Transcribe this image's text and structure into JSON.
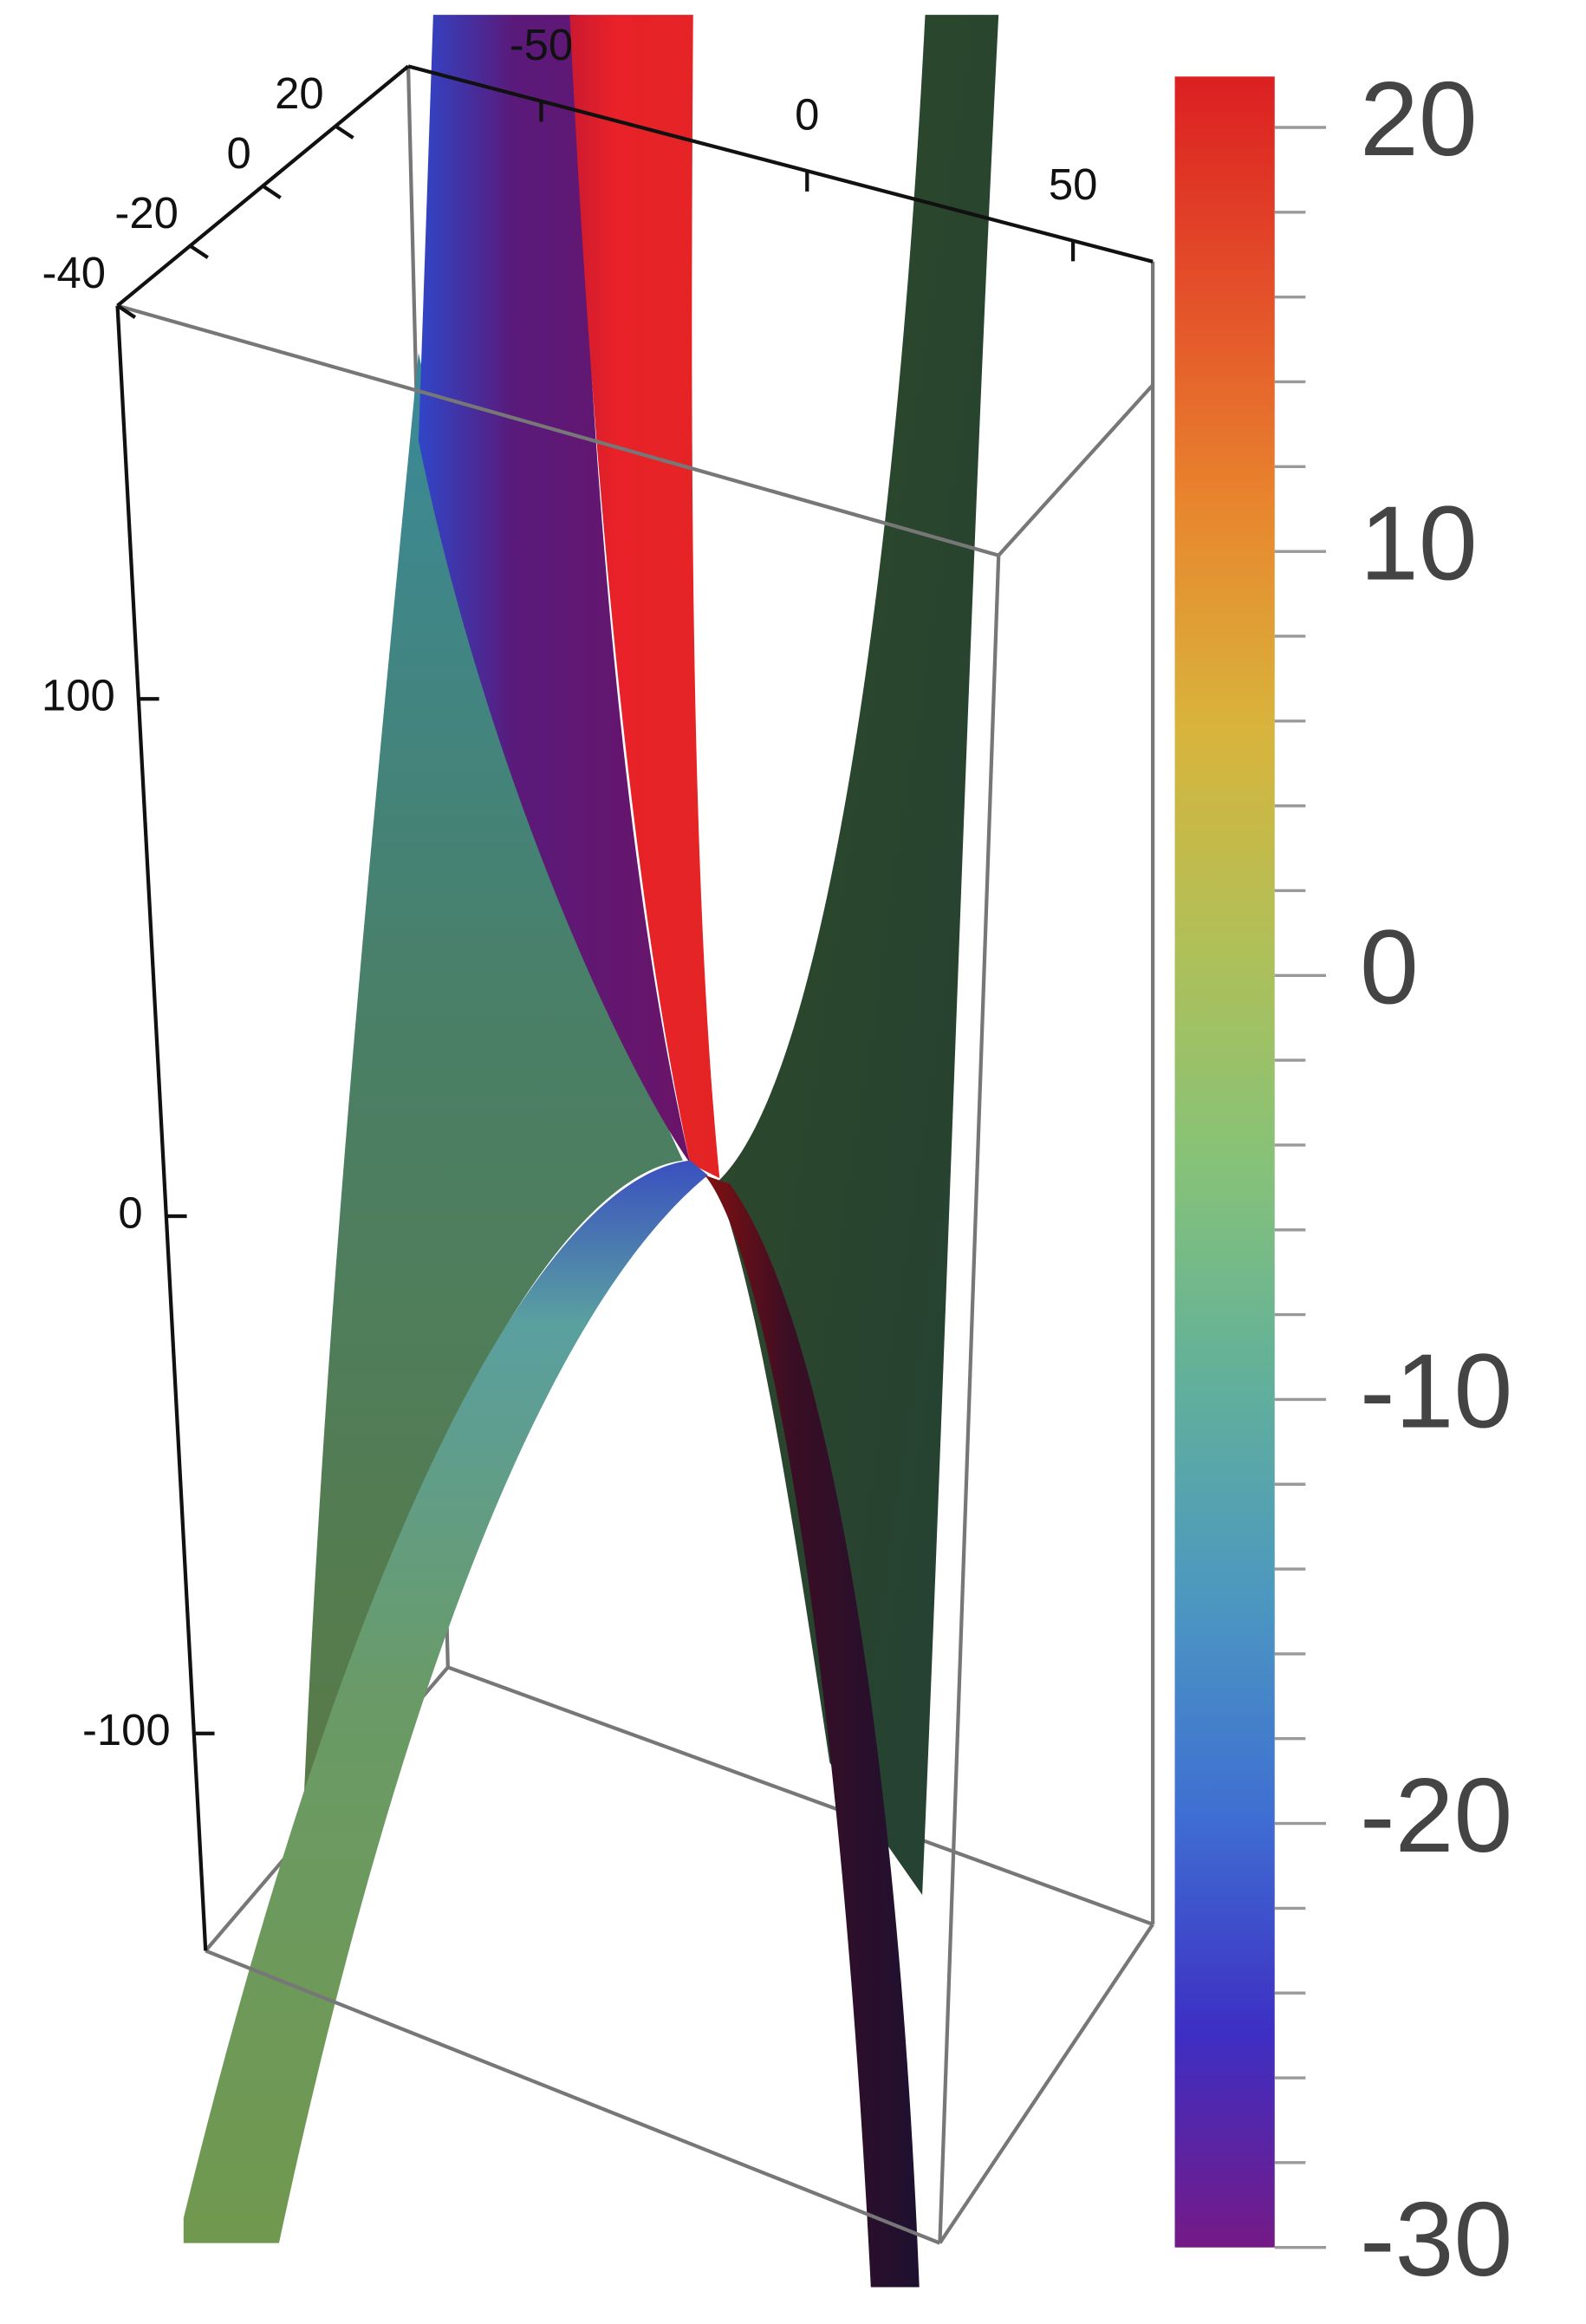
{
  "chart_data": {
    "type": "surface3d",
    "xlim": [
      -75,
      65
    ],
    "xticks": [
      -50,
      0,
      50
    ],
    "ylim": [
      -40,
      40
    ],
    "yticks": [
      -40,
      -20,
      0,
      20
    ],
    "zlim": [
      -142,
      176
    ],
    "zticks": [
      100,
      0,
      -100
    ],
    "colorbar": {
      "lim": [
        -30,
        21.2
      ],
      "ticks": [
        20,
        10,
        0,
        -10,
        -20,
        -30
      ],
      "minor_ticks": [
        18,
        16,
        14,
        12,
        8,
        6,
        4,
        2,
        -2,
        -4,
        -6,
        -8,
        -12,
        -14,
        -16,
        -18,
        -22,
        -24,
        -26,
        -28
      ],
      "colors": [
        "#741a86",
        "#3d2fc4",
        "#3f6fd2",
        "#4c98c0",
        "#62b09a",
        "#86c278",
        "#b0c058",
        "#d8b43c",
        "#e8872e",
        "#e4502a",
        "#dc1f22"
      ]
    }
  }
}
